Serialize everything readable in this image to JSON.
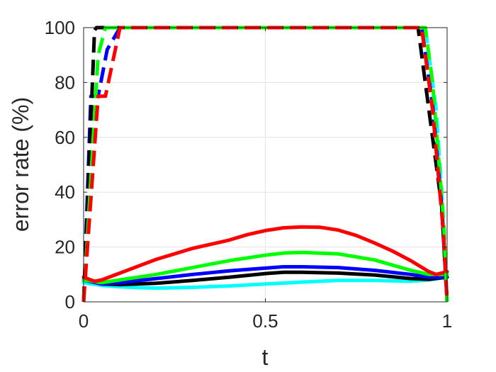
{
  "chart_data": {
    "type": "line",
    "title": "",
    "xlabel": "t",
    "ylabel": "error rate (%)",
    "xlim": [
      0,
      1
    ],
    "ylim": [
      0,
      100
    ],
    "xticks": [
      0,
      0.5,
      1
    ],
    "xtick_labels": [
      "0",
      "0.5",
      "1"
    ],
    "yticks": [
      0,
      20,
      40,
      60,
      80,
      100
    ],
    "ytick_labels": [
      "0",
      "20",
      "40",
      "60",
      "80",
      "100"
    ],
    "grid": true,
    "series": [
      {
        "color": "#00ffff",
        "style": "solid",
        "x": [
          0,
          0.05,
          0.1,
          0.15,
          0.2,
          0.3,
          0.4,
          0.5,
          0.6,
          0.7,
          0.8,
          0.9,
          0.95,
          1
        ],
        "y": [
          7,
          6,
          5.5,
          5.2,
          5,
          5.3,
          5.8,
          6.5,
          7.2,
          7.8,
          7.8,
          7.5,
          8,
          9
        ]
      },
      {
        "color": "#000000",
        "style": "solid",
        "x": [
          0,
          0.05,
          0.1,
          0.2,
          0.3,
          0.4,
          0.5,
          0.55,
          0.6,
          0.7,
          0.8,
          0.9,
          0.95,
          1
        ],
        "y": [
          8,
          6.5,
          6.3,
          6.8,
          7.8,
          9,
          10.3,
          10.8,
          10.8,
          10.5,
          9.8,
          8.5,
          8.2,
          9
        ]
      },
      {
        "color": "#0000ff",
        "style": "solid",
        "x": [
          0,
          0.05,
          0.1,
          0.2,
          0.3,
          0.4,
          0.5,
          0.55,
          0.6,
          0.7,
          0.8,
          0.9,
          0.95,
          1
        ],
        "y": [
          8,
          6.5,
          7,
          8.5,
          10,
          11.3,
          12.3,
          12.8,
          12.8,
          12.5,
          11.5,
          10,
          9,
          9
        ]
      },
      {
        "color": "#00ff00",
        "style": "solid",
        "x": [
          0,
          0.05,
          0.1,
          0.2,
          0.3,
          0.4,
          0.5,
          0.55,
          0.6,
          0.7,
          0.8,
          0.9,
          0.95,
          1
        ],
        "y": [
          8,
          7,
          8,
          10,
          12.5,
          15,
          17,
          17.8,
          18,
          17.5,
          15.3,
          11.5,
          10,
          10
        ]
      },
      {
        "color": "#ff0000",
        "style": "solid",
        "x": [
          0,
          0.03,
          0.05,
          0.1,
          0.15,
          0.2,
          0.3,
          0.4,
          0.45,
          0.5,
          0.55,
          0.6,
          0.65,
          0.7,
          0.75,
          0.8,
          0.85,
          0.9,
          0.95,
          0.97,
          1
        ],
        "y": [
          9,
          7.5,
          8,
          10.5,
          13,
          15.5,
          19.5,
          22.5,
          24.5,
          26,
          27,
          27.3,
          27.2,
          26.2,
          24.2,
          21.5,
          18.5,
          15,
          11,
          10,
          11
        ]
      },
      {
        "color": "#00ffff",
        "style": "dashed",
        "x": [
          0.94,
          0.97,
          0.985,
          1
        ],
        "y": [
          100,
          70,
          40,
          0
        ]
      },
      {
        "color": "#0000ff",
        "style": "dashed",
        "x": [
          0,
          0.02,
          0.04,
          0.065,
          0.1,
          0.93,
          0.96,
          0.985,
          1
        ],
        "y": [
          0,
          75,
          75,
          92,
          100,
          100,
          72,
          35,
          0
        ]
      },
      {
        "color": "#000000",
        "style": "dashed",
        "x": [
          0,
          0.03,
          0.035,
          0.92,
          0.95,
          0.985,
          1
        ],
        "y": [
          0,
          99,
          100,
          100,
          70,
          35,
          0
        ]
      },
      {
        "color": "#00ff00",
        "style": "dashed",
        "x": [
          0,
          0.04,
          0.06,
          0.94,
          0.96,
          0.99,
          1
        ],
        "y": [
          0,
          90,
          100,
          100,
          80,
          30,
          0
        ]
      },
      {
        "color": "#ff0000",
        "style": "dashed",
        "x": [
          0,
          0.04,
          0.06,
          0.1,
          0.93,
          0.96,
          0.99,
          1
        ],
        "y": [
          0,
          75,
          75,
          100,
          100,
          70,
          25,
          0
        ]
      }
    ]
  }
}
